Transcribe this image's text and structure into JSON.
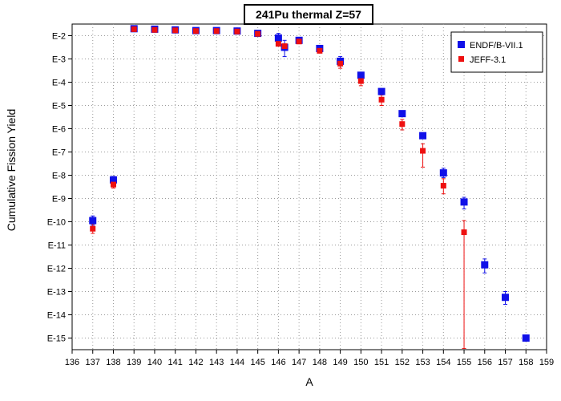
{
  "chart_data": {
    "type": "scatter",
    "title": "241Pu thermal Z=57",
    "xlabel": "A",
    "ylabel": "Cumulative Fission Yield",
    "xlim": [
      136,
      159
    ],
    "ylim_log10": [
      -15.5,
      -1.5
    ],
    "x_ticks": [
      "136",
      "137",
      "138",
      "139",
      "140",
      "141",
      "142",
      "143",
      "144",
      "145",
      "146",
      "147",
      "148",
      "149",
      "150",
      "151",
      "152",
      "153",
      "154",
      "155",
      "156",
      "157",
      "158",
      "159"
    ],
    "y_ticks": [
      {
        "label": "E-2",
        "exp": -2
      },
      {
        "label": "E-3",
        "exp": -3
      },
      {
        "label": "E-4",
        "exp": -4
      },
      {
        "label": "E-5",
        "exp": -5
      },
      {
        "label": "E-6",
        "exp": -6
      },
      {
        "label": "E-7",
        "exp": -7
      },
      {
        "label": "E-8",
        "exp": -8
      },
      {
        "label": "E-9",
        "exp": -9
      },
      {
        "label": "E-10",
        "exp": -10
      },
      {
        "label": "E-11",
        "exp": -11
      },
      {
        "label": "E-12",
        "exp": -12
      },
      {
        "label": "E-13",
        "exp": -13
      },
      {
        "label": "E-14",
        "exp": -14
      },
      {
        "label": "E-15",
        "exp": -15
      }
    ],
    "grid": true,
    "legend_position": "top-right",
    "series": [
      {
        "name": "ENDF/B-VII.1",
        "color": "#1010e8",
        "marker": "square",
        "points": [
          {
            "x": 137,
            "log10y": -9.95,
            "err_lo": 0.2,
            "err_hi": 0.2
          },
          {
            "x": 138,
            "log10y": -8.2,
            "err_lo": 0.15,
            "err_hi": 0.15
          },
          {
            "x": 139,
            "log10y": -1.7
          },
          {
            "x": 140,
            "log10y": -1.72
          },
          {
            "x": 141,
            "log10y": -1.75
          },
          {
            "x": 142,
            "log10y": -1.78
          },
          {
            "x": 143,
            "log10y": -1.78
          },
          {
            "x": 144,
            "log10y": -1.8
          },
          {
            "x": 145,
            "log10y": -1.9
          },
          {
            "x": 146,
            "log10y": -2.1,
            "err_lo": 0.3,
            "err_hi": 0.2
          },
          {
            "x": 146.3,
            "log10y": -2.5,
            "err_lo": 0.4,
            "err_hi": 0.3
          },
          {
            "x": 147,
            "log10y": -2.2
          },
          {
            "x": 148,
            "log10y": -2.55
          },
          {
            "x": 149,
            "log10y": -3.1,
            "err_lo": 0.2,
            "err_hi": 0.2
          },
          {
            "x": 150,
            "log10y": -3.7
          },
          {
            "x": 151,
            "log10y": -4.4
          },
          {
            "x": 152,
            "log10y": -5.35
          },
          {
            "x": 153,
            "log10y": -6.3
          },
          {
            "x": 154,
            "log10y": -7.9,
            "err_lo": 0.2,
            "err_hi": 0.2
          },
          {
            "x": 155,
            "log10y": -9.15,
            "err_lo": 0.3,
            "err_hi": 0.2
          },
          {
            "x": 156,
            "log10y": -11.85,
            "err_lo": 0.35,
            "err_hi": 0.25
          },
          {
            "x": 157,
            "log10y": -13.25,
            "err_lo": 0.3,
            "err_hi": 0.25
          },
          {
            "x": 158,
            "log10y": -15.0
          }
        ]
      },
      {
        "name": "JEFF-3.1",
        "color": "#ee1010",
        "marker": "square",
        "points": [
          {
            "x": 137,
            "log10y": -10.3,
            "err_lo": 0.2,
            "err_hi": 0.2
          },
          {
            "x": 138,
            "log10y": -8.4,
            "err_lo": 0.15,
            "err_hi": 0.15
          },
          {
            "x": 139,
            "log10y": -1.72
          },
          {
            "x": 140,
            "log10y": -1.75
          },
          {
            "x": 141,
            "log10y": -1.77
          },
          {
            "x": 142,
            "log10y": -1.8
          },
          {
            "x": 143,
            "log10y": -1.8
          },
          {
            "x": 144,
            "log10y": -1.82
          },
          {
            "x": 145,
            "log10y": -1.92
          },
          {
            "x": 146,
            "log10y": -2.35
          },
          {
            "x": 146.3,
            "log10y": -2.45
          },
          {
            "x": 147,
            "log10y": -2.25
          },
          {
            "x": 148,
            "log10y": -2.65
          },
          {
            "x": 149,
            "log10y": -3.2,
            "err_lo": 0.2,
            "err_hi": 0.2
          },
          {
            "x": 150,
            "log10y": -3.95,
            "err_lo": 0.2,
            "err_hi": 0.2
          },
          {
            "x": 151,
            "log10y": -4.75,
            "err_lo": 0.25,
            "err_hi": 0.2
          },
          {
            "x": 152,
            "log10y": -5.8,
            "err_lo": 0.25,
            "err_hi": 0.2
          },
          {
            "x": 153,
            "log10y": -6.95,
            "err_lo": 0.7,
            "err_hi": 0.3
          },
          {
            "x": 154,
            "log10y": -8.45,
            "err_lo": 0.35,
            "err_hi": 0.3
          },
          {
            "x": 155,
            "log10y": -10.45,
            "err_lo": 5.0,
            "err_hi": 0.5
          }
        ]
      }
    ]
  }
}
